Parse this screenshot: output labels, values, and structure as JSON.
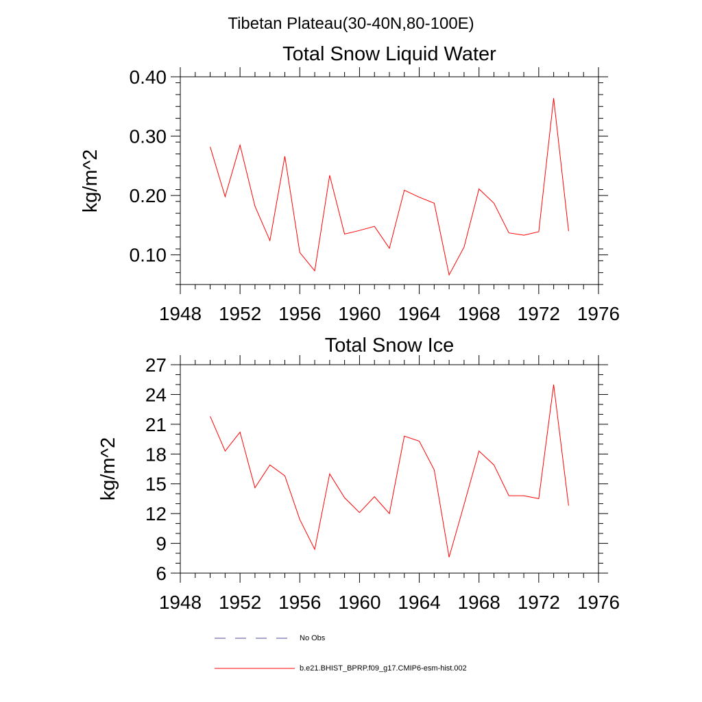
{
  "suptitle": "Tibetan Plateau(30-40N,80-100E)",
  "legend": [
    {
      "label": "No Obs",
      "color": "#4a4a9a",
      "style": "dashed"
    },
    {
      "label": "b.e21.BHIST_BPRP.f09_g17.CMIP6-esm-hist.002",
      "color": "#ff0000",
      "style": "solid"
    }
  ],
  "chart_data": [
    {
      "type": "line",
      "title": "Total Snow Liquid Water",
      "ylabel": "kg/m^2",
      "xlim": [
        1948,
        1976
      ],
      "ylim": [
        0.05,
        0.4
      ],
      "xticks": [
        1948,
        1952,
        1956,
        1960,
        1964,
        1968,
        1972,
        1976
      ],
      "xtick_labels": [
        "1948",
        "1952",
        "1956",
        "1960",
        "1964",
        "1968",
        "1972",
        "1976"
      ],
      "yticks": [
        0.1,
        0.2,
        0.3,
        0.4
      ],
      "ytick_labels": [
        "0.10",
        "0.20",
        "0.30",
        "0.40"
      ],
      "x": [
        1950,
        1951,
        1952,
        1953,
        1954,
        1955,
        1956,
        1957,
        1958,
        1959,
        1960,
        1961,
        1962,
        1963,
        1964,
        1965,
        1966,
        1967,
        1968,
        1969,
        1970,
        1971,
        1972,
        1973,
        1974
      ],
      "series": [
        {
          "name": "b.e21.BHIST_BPRP.f09_g17.CMIP6-esm-hist.002",
          "color": "#ff0000",
          "values": [
            0.282,
            0.198,
            0.285,
            0.182,
            0.124,
            0.266,
            0.104,
            0.073,
            0.234,
            0.135,
            0.141,
            0.148,
            0.111,
            0.209,
            0.197,
            0.187,
            0.066,
            0.113,
            0.211,
            0.187,
            0.137,
            0.133,
            0.139,
            0.364,
            0.14
          ]
        }
      ]
    },
    {
      "type": "line",
      "title": "Total Snow Ice",
      "ylabel": "kg/m^2",
      "xlim": [
        1948,
        1976
      ],
      "ylim": [
        6,
        27
      ],
      "xticks": [
        1948,
        1952,
        1956,
        1960,
        1964,
        1968,
        1972,
        1976
      ],
      "xtick_labels": [
        "1948",
        "1952",
        "1956",
        "1960",
        "1964",
        "1968",
        "1972",
        "1976"
      ],
      "yticks": [
        6,
        9,
        12,
        15,
        18,
        21,
        24,
        27
      ],
      "ytick_labels": [
        "6",
        "9",
        "12",
        "15",
        "18",
        "21",
        "24",
        "27"
      ],
      "x": [
        1950,
        1951,
        1952,
        1953,
        1954,
        1955,
        1956,
        1957,
        1958,
        1959,
        1960,
        1961,
        1962,
        1963,
        1964,
        1965,
        1966,
        1967,
        1968,
        1969,
        1970,
        1971,
        1972,
        1973,
        1974
      ],
      "series": [
        {
          "name": "b.e21.BHIST_BPRP.f09_g17.CMIP6-esm-hist.002",
          "color": "#ff0000",
          "values": [
            21.8,
            18.3,
            20.2,
            14.6,
            16.9,
            15.8,
            11.4,
            8.4,
            16.0,
            13.6,
            12.1,
            13.7,
            12.0,
            19.8,
            19.3,
            16.4,
            7.6,
            12.9,
            18.3,
            16.9,
            13.8,
            13.8,
            13.5,
            25.0,
            12.8
          ]
        }
      ]
    }
  ]
}
